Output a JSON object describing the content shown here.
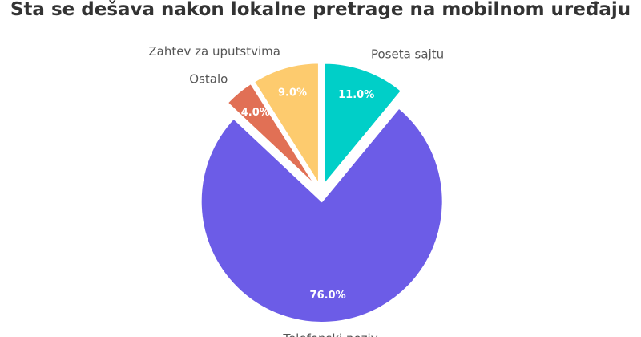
{
  "chart_data": {
    "type": "pie",
    "title": "Sta se dešava nakon lokalne pretrage na mobilnom uređaju",
    "slices": [
      {
        "label": "Poseta sajtu",
        "value": 11.0,
        "value_label": "11.0%",
        "color": "#00CFC8"
      },
      {
        "label": "Telefonski poziv",
        "value": 76.0,
        "value_label": "76.0%",
        "color": "#6C5CE7"
      },
      {
        "label": "Ostalo",
        "value": 4.0,
        "value_label": "4.0%",
        "color": "#E17055"
      },
      {
        "label": "Zahtev za uputstvima",
        "value": 9.0,
        "value_label": "9.0%",
        "color": "#FDCB6E"
      }
    ]
  }
}
